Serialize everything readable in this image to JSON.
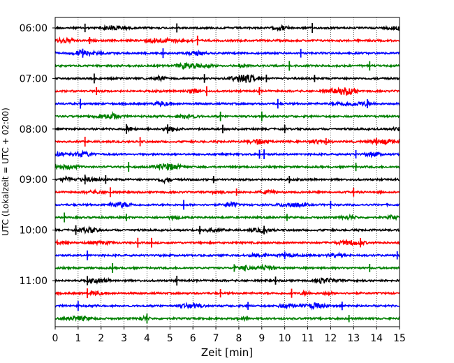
{
  "chart_data": {
    "type": "line",
    "title": "",
    "xlabel": "Zeit  [min]",
    "ylabel": "UTC (Lokalzeit = UTC + 02:00)",
    "xlim": [
      0,
      15
    ],
    "x_ticks": [
      0,
      1,
      2,
      3,
      4,
      5,
      6,
      7,
      8,
      9,
      10,
      11,
      12,
      13,
      14,
      15
    ],
    "x_tick_labels": [
      "0",
      "1",
      "2",
      "3",
      "4",
      "5",
      "6",
      "7",
      "8",
      "9",
      "10",
      "11",
      "12",
      "13",
      "14",
      "15"
    ],
    "y_tick_labels": [
      "06:00",
      "07:00",
      "08:00",
      "09:00",
      "10:00",
      "11:00"
    ],
    "trace_interval_min": 15,
    "grid": "vertical dotted lines at each minute",
    "colors": [
      "#000000",
      "#ff0000",
      "#0000ff",
      "#008000"
    ],
    "traces": [
      {
        "start": "06:00",
        "color": "#000000",
        "spikes": [
          11.2,
          1.3,
          5.3
        ]
      },
      {
        "start": "06:15",
        "color": "#ff0000",
        "spikes": [
          6.2,
          1.5
        ]
      },
      {
        "start": "06:30",
        "color": "#0000ff",
        "spikes": [
          4.7,
          10.7,
          1.2
        ]
      },
      {
        "start": "06:45",
        "color": "#008000",
        "spikes": [
          10.2,
          13.7
        ]
      },
      {
        "start": "07:00",
        "color": "#000000",
        "spikes": [
          1.7,
          6.5,
          9.2,
          11.3
        ]
      },
      {
        "start": "07:15",
        "color": "#ff0000",
        "spikes": [
          6.6,
          8.9,
          1.8
        ]
      },
      {
        "start": "07:30",
        "color": "#0000ff",
        "spikes": [
          1.1,
          9.7,
          13.6
        ]
      },
      {
        "start": "07:45",
        "color": "#008000",
        "spikes": [
          9.0,
          7.2
        ]
      },
      {
        "start": "08:00",
        "color": "#000000",
        "spikes": [
          3.1,
          4.9,
          7.3,
          10.0
        ]
      },
      {
        "start": "08:15",
        "color": "#ff0000",
        "spikes": [
          1.3,
          3.7,
          11.8,
          14.0
        ]
      },
      {
        "start": "08:30",
        "color": "#0000ff",
        "spikes": [
          9.1,
          8.9,
          13.1
        ]
      },
      {
        "start": "08:45",
        "color": "#008000",
        "spikes": [
          3.2,
          4.9,
          13.1
        ]
      },
      {
        "start": "09:00",
        "color": "#000000",
        "spikes": [
          1.3,
          2.2,
          6.9,
          10.2
        ]
      },
      {
        "start": "09:15",
        "color": "#ff0000",
        "spikes": [
          2.4,
          7.9,
          13.0
        ]
      },
      {
        "start": "09:30",
        "color": "#0000ff",
        "spikes": [
          5.6,
          12.0
        ]
      },
      {
        "start": "09:45",
        "color": "#008000",
        "spikes": [
          0.4,
          3.1,
          10.1
        ]
      },
      {
        "start": "10:00",
        "color": "#000000",
        "spikes": [
          0.9,
          6.3,
          9.1
        ]
      },
      {
        "start": "10:15",
        "color": "#ff0000",
        "spikes": [
          3.6,
          4.2,
          13.3
        ]
      },
      {
        "start": "10:30",
        "color": "#0000ff",
        "spikes": [
          1.4,
          10.0,
          14.9
        ]
      },
      {
        "start": "10:45",
        "color": "#008000",
        "spikes": [
          2.5,
          7.8,
          13.7
        ]
      },
      {
        "start": "11:00",
        "color": "#000000",
        "spikes": [
          5.3,
          1.4,
          9.6
        ]
      },
      {
        "start": "11:15",
        "color": "#ff0000",
        "spikes": [
          1.4,
          7.2,
          10.3
        ]
      },
      {
        "start": "11:30",
        "color": "#0000ff",
        "spikes": [
          1.0,
          8.4,
          12.5
        ]
      },
      {
        "start": "11:45",
        "color": "#008000",
        "spikes": [
          4.0,
          12.8
        ]
      }
    ]
  }
}
